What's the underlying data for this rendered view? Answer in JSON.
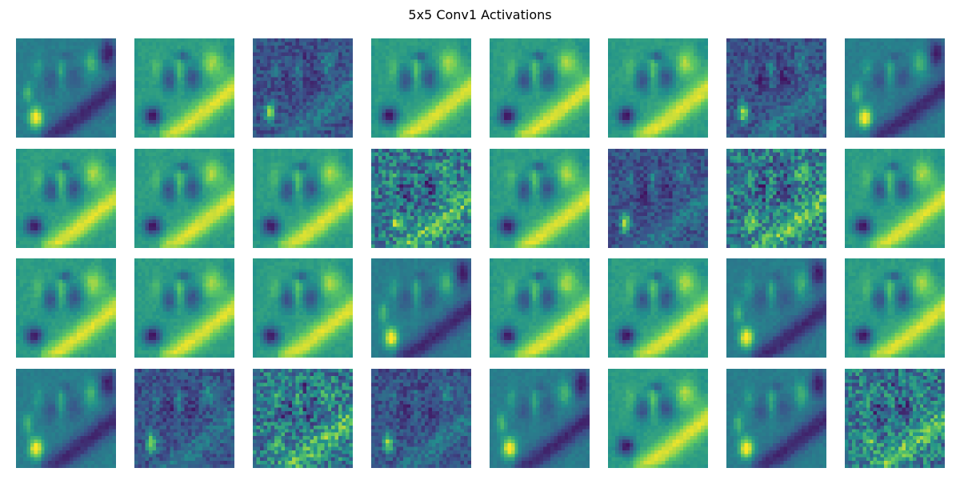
{
  "chart_data": {
    "type": "heatmap",
    "title": "5x5 Conv1 Activations",
    "rows": 4,
    "cols": 8,
    "colormap": [
      "#440154",
      "#3b528b",
      "#21918c",
      "#5ec962",
      "#fde725"
    ],
    "axes_visible": false,
    "panels": [
      {
        "row": 0,
        "col": 0,
        "variant": "a"
      },
      {
        "row": 0,
        "col": 1,
        "variant": "b"
      },
      {
        "row": 0,
        "col": 2,
        "variant": "c"
      },
      {
        "row": 0,
        "col": 3,
        "variant": "b"
      },
      {
        "row": 0,
        "col": 4,
        "variant": "b"
      },
      {
        "row": 0,
        "col": 5,
        "variant": "b"
      },
      {
        "row": 0,
        "col": 6,
        "variant": "c"
      },
      {
        "row": 0,
        "col": 7,
        "variant": "a"
      },
      {
        "row": 1,
        "col": 0,
        "variant": "b"
      },
      {
        "row": 1,
        "col": 1,
        "variant": "b"
      },
      {
        "row": 1,
        "col": 2,
        "variant": "b"
      },
      {
        "row": 1,
        "col": 3,
        "variant": "d"
      },
      {
        "row": 1,
        "col": 4,
        "variant": "b"
      },
      {
        "row": 1,
        "col": 5,
        "variant": "c"
      },
      {
        "row": 1,
        "col": 6,
        "variant": "d"
      },
      {
        "row": 1,
        "col": 7,
        "variant": "b"
      },
      {
        "row": 2,
        "col": 0,
        "variant": "b"
      },
      {
        "row": 2,
        "col": 1,
        "variant": "b"
      },
      {
        "row": 2,
        "col": 2,
        "variant": "b"
      },
      {
        "row": 2,
        "col": 3,
        "variant": "a"
      },
      {
        "row": 2,
        "col": 4,
        "variant": "b"
      },
      {
        "row": 2,
        "col": 5,
        "variant": "b"
      },
      {
        "row": 2,
        "col": 6,
        "variant": "a"
      },
      {
        "row": 2,
        "col": 7,
        "variant": "b"
      },
      {
        "row": 3,
        "col": 0,
        "variant": "a"
      },
      {
        "row": 3,
        "col": 1,
        "variant": "c"
      },
      {
        "row": 3,
        "col": 2,
        "variant": "d"
      },
      {
        "row": 3,
        "col": 3,
        "variant": "c"
      },
      {
        "row": 3,
        "col": 4,
        "variant": "a"
      },
      {
        "row": 3,
        "col": 5,
        "variant": "b"
      },
      {
        "row": 3,
        "col": 6,
        "variant": "a"
      },
      {
        "row": 3,
        "col": 7,
        "variant": "d"
      }
    ]
  }
}
